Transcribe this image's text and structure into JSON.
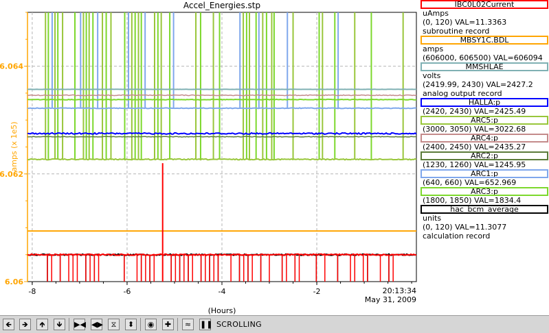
{
  "chart_data": {
    "type": "line",
    "title": "Accel_Energies.stp",
    "xlabel": "(Hours)",
    "ylabel": "amps (x 1e5)",
    "xlim": [
      -8.1,
      0.1
    ],
    "ylim": [
      6.06,
      6.065
    ],
    "x_ticks": [
      -8,
      -6,
      -4,
      -2
    ],
    "x_tick_labels": [
      "-8",
      "-6",
      "-4",
      "-2"
    ],
    "y_ticks": [
      6.06,
      6.062,
      6.064
    ],
    "y_tick_labels": [
      "6.06",
      "6.062",
      "6.064"
    ],
    "grid": true,
    "x_end_time": "20:13:34",
    "x_end_date": "May 31, 2009",
    "series": [
      {
        "name": "MBSY1C.BDL",
        "color": "#ffa500",
        "baseline": 6.06094
      },
      {
        "name": "MMSHLAE",
        "color": "#7fb0b3",
        "baseline": 6.06357
      },
      {
        "name": "ARC4:p",
        "color": "#c48a8a",
        "baseline": 6.06346
      },
      {
        "name": "ARC3:p",
        "color": "#7cd82c",
        "baseline": 6.06338
      },
      {
        "name": "ARC1:p",
        "color": "#7fa7ec",
        "baseline": 6.06322
      },
      {
        "name": "HALLA:p",
        "color": "#0000ff",
        "baseline": 6.06275
      },
      {
        "name": "ARC2:p",
        "color": "#5b7b3a",
        "baseline": 6.06269
      },
      {
        "name": "ARC5:p",
        "color": "#98c63a",
        "baseline": 6.06227
      },
      {
        "name": "hac_bcm_average",
        "color": "#000000",
        "baseline": 6.0605
      },
      {
        "name": "IBC0L02Current",
        "color": "#ff0000",
        "baseline": 6.0605
      }
    ]
  },
  "legend": [
    {
      "label": "IBC0L02Current",
      "color": "#ff0000",
      "lines": [
        "uAmps",
        "(0, 120) VAL=11.3363",
        "subroutine record"
      ]
    },
    {
      "label": "MBSY1C.BDL",
      "color": "#ffa500",
      "lines": [
        "amps",
        "(606000, 606500) VAL=606094"
      ]
    },
    {
      "label": "MMSHLAE",
      "color": "#7fb0b3",
      "lines": [
        "volts",
        "(2419.99, 2430) VAL=2427.2",
        "analog output record"
      ]
    },
    {
      "label": "HALLA:p",
      "color": "#0000ff",
      "lines": [
        "(2420, 2430) VAL=2425.49"
      ]
    },
    {
      "label": "ARC5:p",
      "color": "#98c63a",
      "lines": [
        "(3000, 3050) VAL=3022.68"
      ]
    },
    {
      "label": "ARC4:p",
      "color": "#c48a8a",
      "lines": [
        "(2400, 2450) VAL=2435.27"
      ]
    },
    {
      "label": "ARC2:p",
      "color": "#5b7b3a",
      "lines": [
        "(1230, 1260) VAL=1245.95"
      ]
    },
    {
      "label": "ARC1:p",
      "color": "#7fa7ec",
      "lines": [
        "(640, 660) VAL=652.969"
      ]
    },
    {
      "label": "ARC3:p",
      "color": "#7cd82c",
      "lines": [
        "(1800, 1850) VAL=1834.4"
      ]
    },
    {
      "label": "hac_bcm_average",
      "color": "#000000",
      "lines": [
        "units",
        "(0, 120) VAL=11.3077",
        "calculation record"
      ]
    }
  ],
  "toolbar": {
    "status": "SCROLLING",
    "buttons": [
      "pan-left",
      "pan-right",
      "pan-up",
      "pan-down",
      "zoom-in-x",
      "zoom-out-x",
      "zoom-in-y",
      "zoom-out-y",
      "autoscale",
      "add",
      "style",
      "pause"
    ]
  }
}
